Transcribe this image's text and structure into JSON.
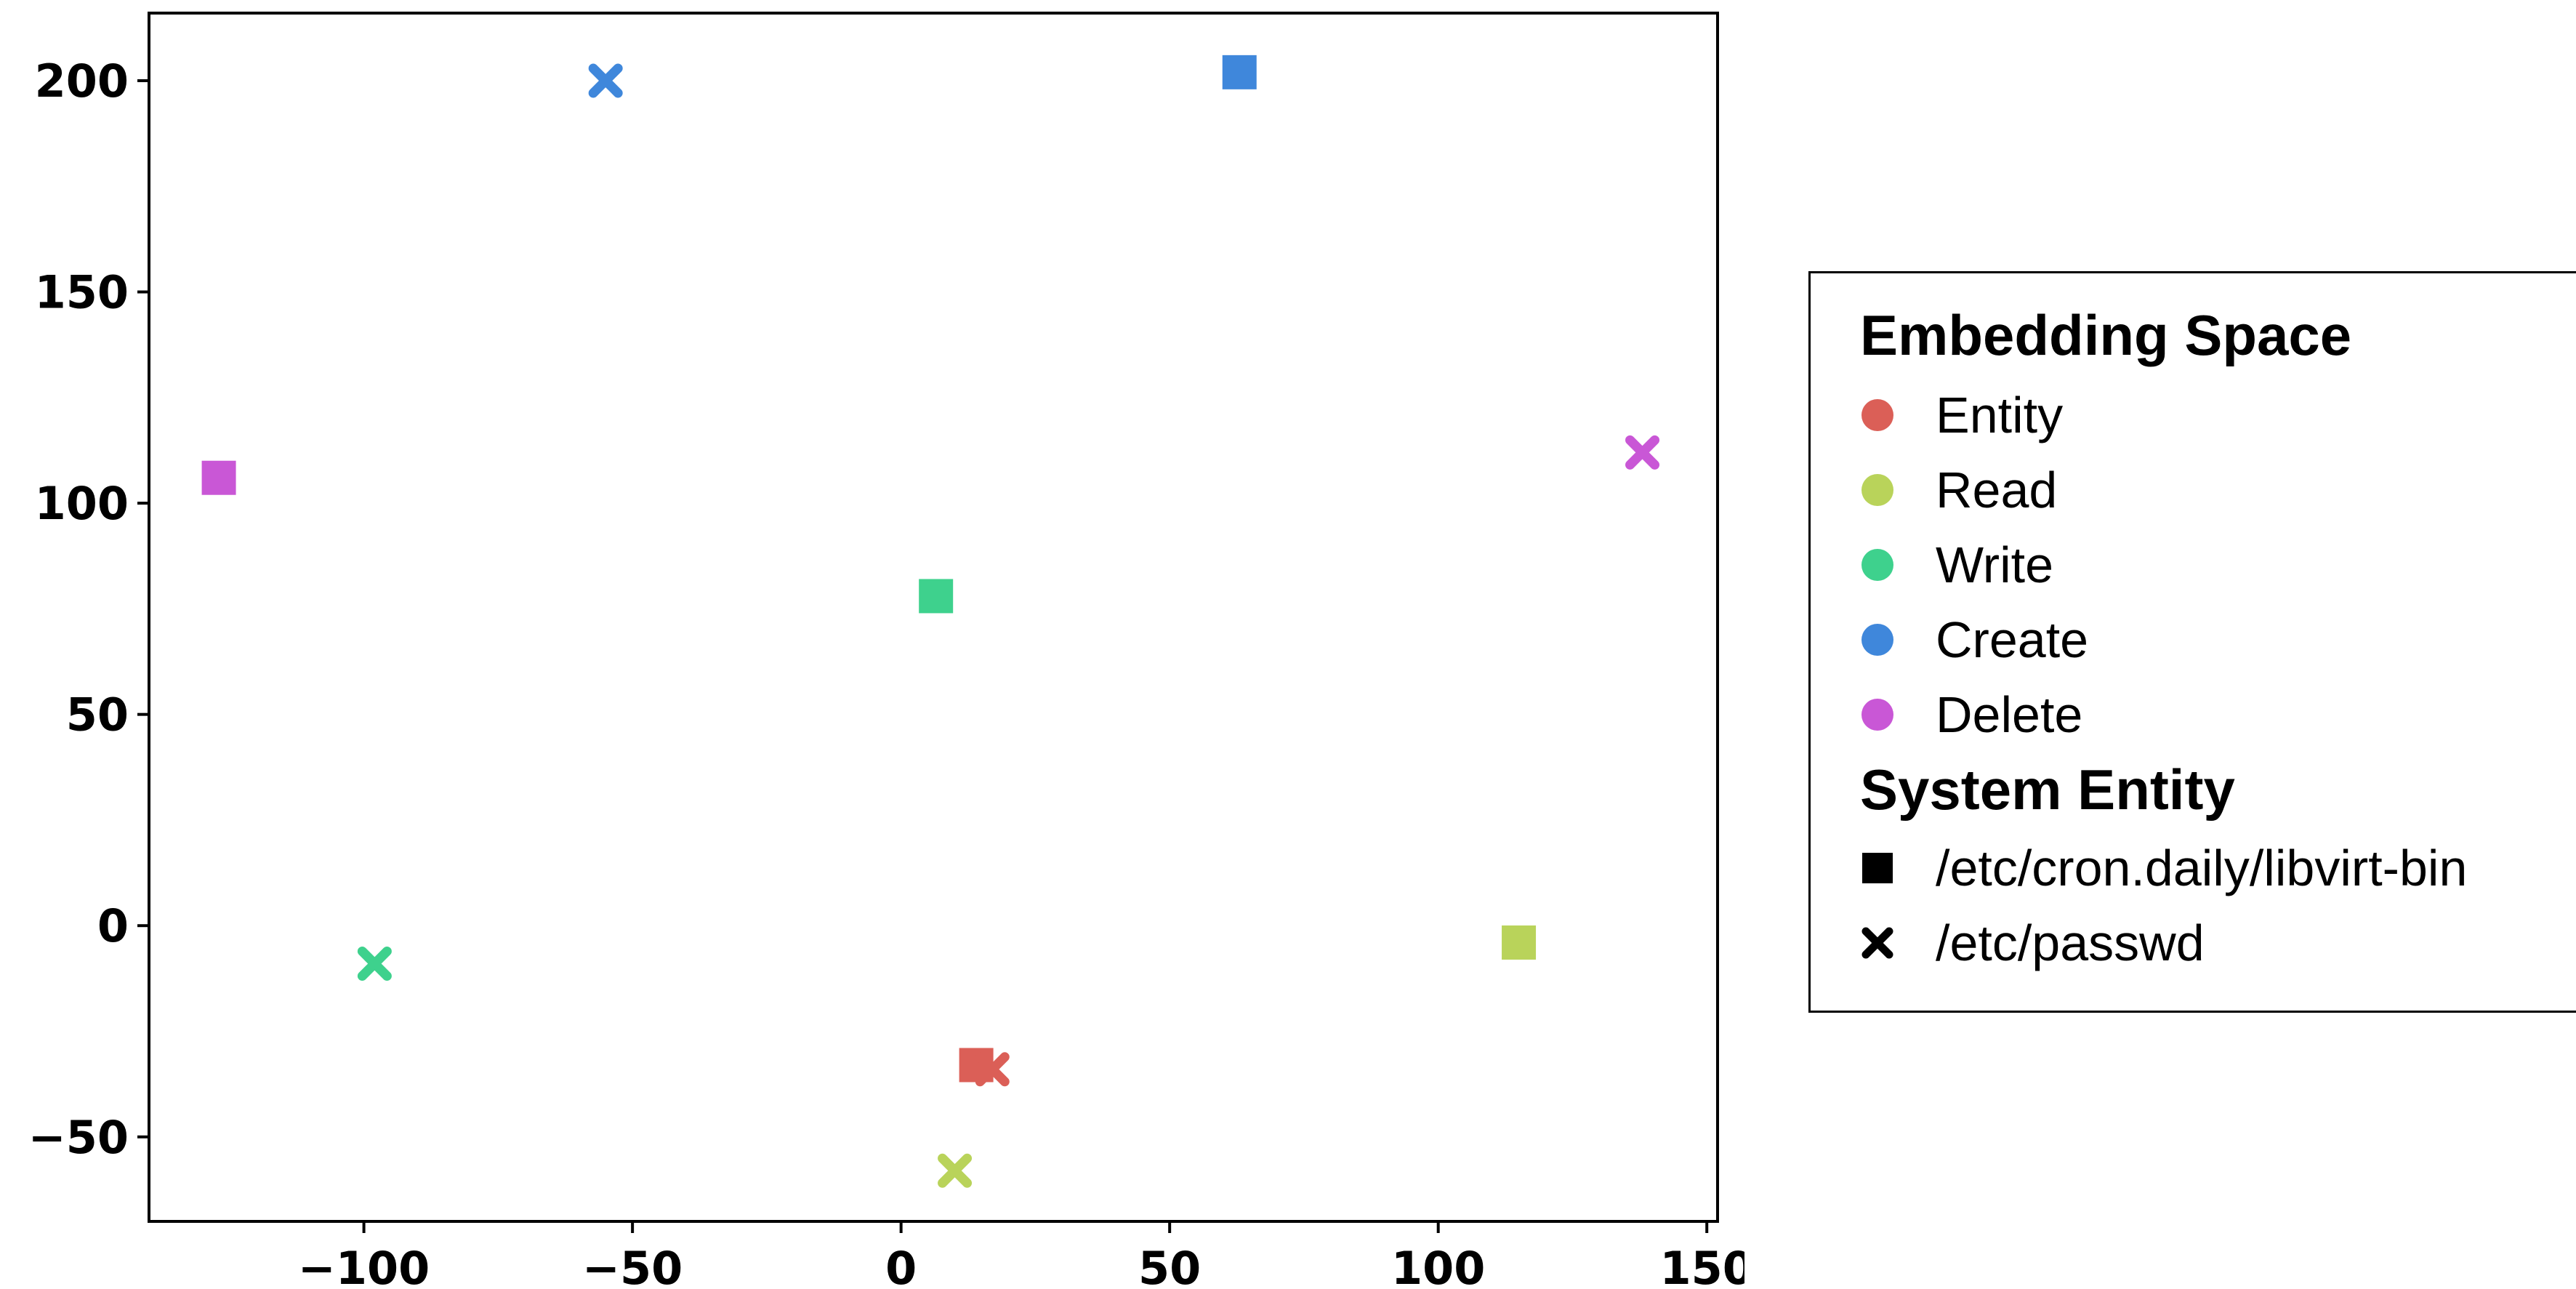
{
  "chart_data": {
    "type": "scatter",
    "xlim": [
      -140,
      152
    ],
    "ylim": [
      -70,
      216
    ],
    "x_ticks": [
      -100,
      -50,
      0,
      50,
      100,
      150
    ],
    "x_tick_labels": [
      "−100",
      "−50",
      "0",
      "50",
      "100",
      "150"
    ],
    "y_ticks": [
      -50,
      0,
      50,
      100,
      150,
      200
    ],
    "y_tick_labels": [
      "−50",
      "0",
      "50",
      "100",
      "150",
      "200"
    ],
    "grid": false,
    "legend_placement": "right, outside",
    "points": [
      {
        "x": 14,
        "y": -33,
        "category": "Entity",
        "entity": "/etc/cron.daily/libvirt-bin"
      },
      {
        "x": 17,
        "y": -34,
        "category": "Entity",
        "entity": "/etc/passwd"
      },
      {
        "x": 115,
        "y": -4,
        "category": "Read",
        "entity": "/etc/cron.daily/libvirt-bin"
      },
      {
        "x": 10,
        "y": -58,
        "category": "Read",
        "entity": "/etc/passwd"
      },
      {
        "x": 6.5,
        "y": 78,
        "category": "Write",
        "entity": "/etc/cron.daily/libvirt-bin"
      },
      {
        "x": -98,
        "y": -9,
        "category": "Write",
        "entity": "/etc/passwd"
      },
      {
        "x": 63,
        "y": 202,
        "category": "Create",
        "entity": "/etc/cron.daily/libvirt-bin"
      },
      {
        "x": -55,
        "y": 200,
        "category": "Create",
        "entity": "/etc/passwd"
      },
      {
        "x": -127,
        "y": 106,
        "category": "Delete",
        "entity": "/etc/cron.daily/libvirt-bin"
      },
      {
        "x": 138,
        "y": 112,
        "category": "Delete",
        "entity": "/etc/passwd"
      }
    ]
  },
  "legend": {
    "title_space": "Embedding Space",
    "space_items": [
      {
        "label": "Entity",
        "color": "#db5f57"
      },
      {
        "label": "Read",
        "color": "#b9d35a"
      },
      {
        "label": "Write",
        "color": "#3ed18d"
      },
      {
        "label": "Create",
        "color": "#3f87db"
      },
      {
        "label": "Delete",
        "color": "#c957d6"
      }
    ],
    "title_entity": "System Entity",
    "entity_items": [
      {
        "label": "/etc/cron.daily/libvirt-bin",
        "marker": "square"
      },
      {
        "label": "/etc/passwd",
        "marker": "x"
      }
    ]
  }
}
